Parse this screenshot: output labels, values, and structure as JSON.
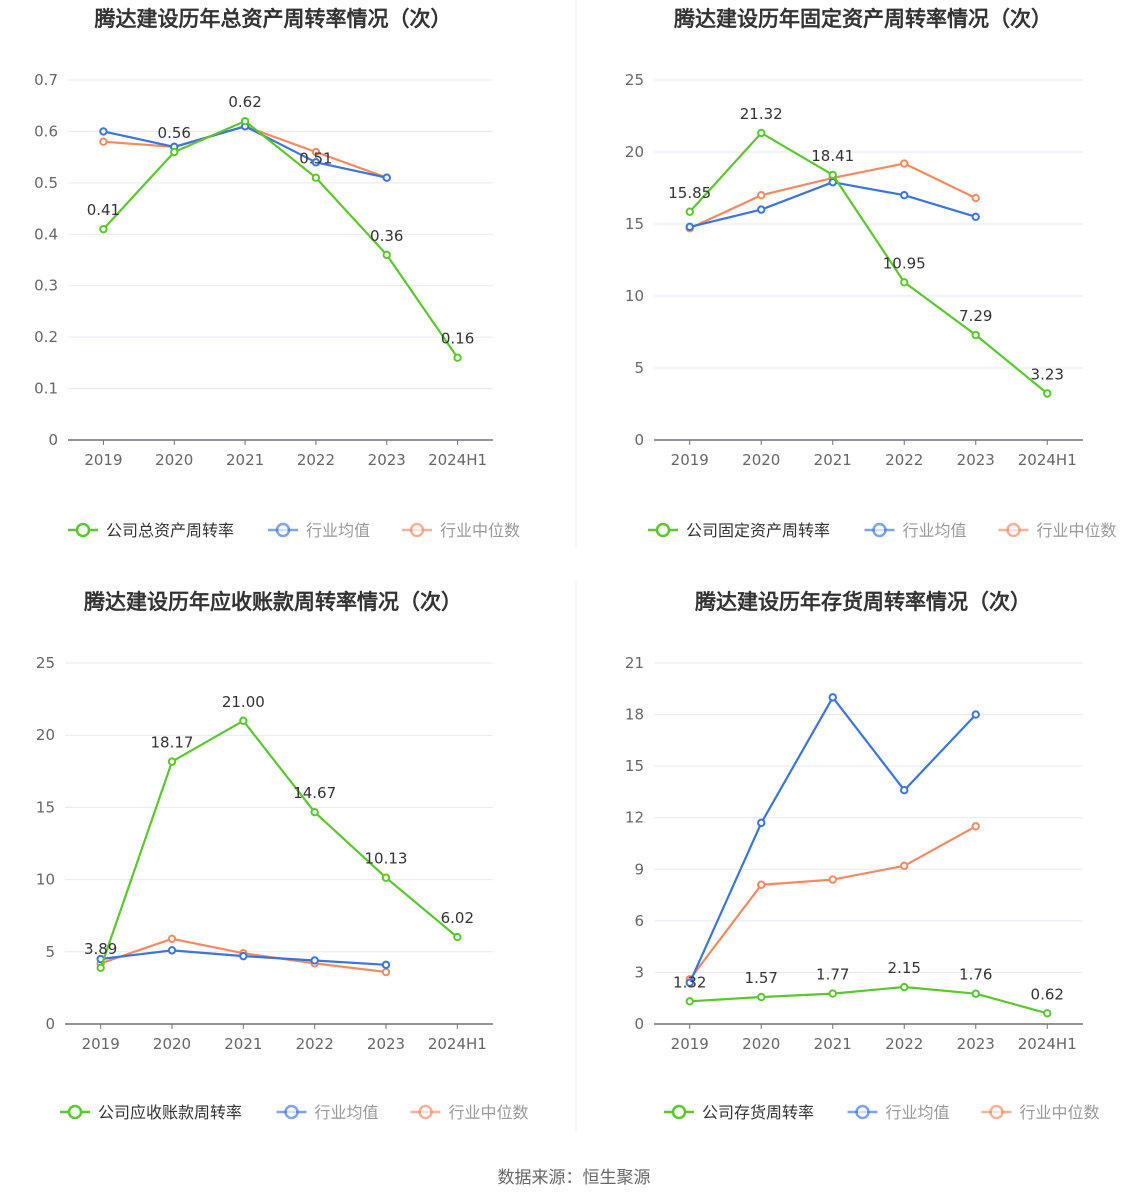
{
  "source_text": "数据来源：恒生聚源",
  "colors": {
    "company": "#5cc62f",
    "average": "#3c74d8",
    "median": "#f28a62",
    "grid": "#e6e9f2",
    "axis_text": "#666666",
    "label_text": "#333333",
    "title": "#333333"
  },
  "chart_data": [
    {
      "type": "line",
      "title": "腾达建设历年总资产周转率情况（次）",
      "categories": [
        "2019",
        "2020",
        "2021",
        "2022",
        "2023",
        "2024H1"
      ],
      "ylim": [
        0,
        0.7
      ],
      "yticks": [
        "0",
        "0.1",
        "0.2",
        "0.3",
        "0.4",
        "0.5",
        "0.6",
        "0.7"
      ],
      "ytick_values": [
        0,
        0.1,
        0.2,
        0.3,
        0.4,
        0.5,
        0.6,
        0.7
      ],
      "series": [
        {
          "name": "公司总资产周转率",
          "key": "company",
          "values": [
            0.41,
            0.56,
            0.62,
            0.51,
            0.36,
            0.16
          ],
          "labels": [
            "0.41",
            "0.56",
            "0.62",
            "0.51",
            "0.36",
            "0.16"
          ]
        },
        {
          "name": "行业均值",
          "key": "average",
          "values": [
            0.6,
            0.57,
            0.61,
            0.54,
            0.51,
            null
          ]
        },
        {
          "name": "行业中位数",
          "key": "median",
          "values": [
            0.58,
            0.57,
            0.61,
            0.56,
            0.51,
            null
          ]
        }
      ]
    },
    {
      "type": "line",
      "title": "腾达建设历年固定资产周转率情况（次）",
      "categories": [
        "2019",
        "2020",
        "2021",
        "2022",
        "2023",
        "2024H1"
      ],
      "ylim": [
        0,
        25
      ],
      "yticks": [
        "0",
        "5",
        "10",
        "15",
        "20",
        "25"
      ],
      "ytick_values": [
        0,
        5,
        10,
        15,
        20,
        25
      ],
      "series": [
        {
          "name": "公司固定资产周转率",
          "key": "company",
          "values": [
            15.85,
            21.32,
            18.41,
            10.95,
            7.29,
            3.23
          ],
          "labels": [
            "15.85",
            "21.32",
            "18.41",
            "10.95",
            "7.29",
            "3.23"
          ]
        },
        {
          "name": "行业均值",
          "key": "average",
          "values": [
            14.8,
            16.0,
            17.9,
            17.0,
            15.5,
            null
          ]
        },
        {
          "name": "行业中位数",
          "key": "median",
          "values": [
            14.7,
            17.0,
            18.2,
            19.2,
            16.8,
            null
          ]
        }
      ]
    },
    {
      "type": "line",
      "title": "腾达建设历年应收账款周转率情况（次）",
      "categories": [
        "2019",
        "2020",
        "2021",
        "2022",
        "2023",
        "2024H1"
      ],
      "ylim": [
        0,
        25
      ],
      "yticks": [
        "0",
        "5",
        "10",
        "15",
        "20",
        "25"
      ],
      "ytick_values": [
        0,
        5,
        10,
        15,
        20,
        25
      ],
      "series": [
        {
          "name": "公司应收账款周转率",
          "key": "company",
          "values": [
            3.89,
            18.17,
            21.0,
            14.67,
            10.13,
            6.02
          ],
          "labels": [
            "3.89",
            "18.17",
            "21.00",
            "14.67",
            "10.13",
            "6.02"
          ]
        },
        {
          "name": "行业均值",
          "key": "average",
          "values": [
            4.5,
            5.1,
            4.7,
            4.4,
            4.1,
            null
          ]
        },
        {
          "name": "行业中位数",
          "key": "median",
          "values": [
            4.2,
            5.9,
            4.9,
            4.2,
            3.6,
            null
          ]
        }
      ]
    },
    {
      "type": "line",
      "title": "腾达建设历年存货周转率情况（次）",
      "categories": [
        "2019",
        "2020",
        "2021",
        "2022",
        "2023",
        "2024H1"
      ],
      "ylim": [
        0,
        21
      ],
      "yticks": [
        "0",
        "3",
        "6",
        "9",
        "12",
        "15",
        "18",
        "21"
      ],
      "ytick_values": [
        0,
        3,
        6,
        9,
        12,
        15,
        18,
        21
      ],
      "series": [
        {
          "name": "公司存货周转率",
          "key": "company",
          "values": [
            1.32,
            1.57,
            1.77,
            2.15,
            1.76,
            0.62
          ],
          "labels": [
            "1.32",
            "1.57",
            "1.77",
            "2.15",
            "1.76",
            "0.62"
          ]
        },
        {
          "name": "行业均值",
          "key": "average",
          "values": [
            2.4,
            11.7,
            19.0,
            13.6,
            18.0,
            null
          ]
        },
        {
          "name": "行业中位数",
          "key": "median",
          "values": [
            2.6,
            8.1,
            8.4,
            9.2,
            11.5,
            null
          ]
        }
      ]
    }
  ]
}
